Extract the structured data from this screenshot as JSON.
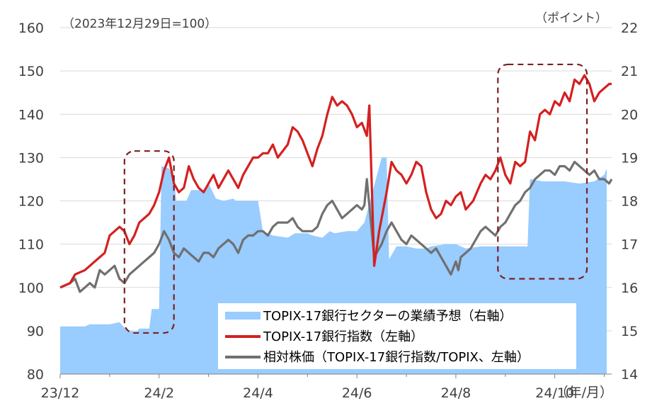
{
  "chart_data": {
    "type": "line",
    "base_note": "（2023年12月29日=100）",
    "right_unit": "（ポイント）",
    "x_unit": "（年/月）",
    "x_ticks": [
      "23/12",
      "24/2",
      "24/4",
      "24/6",
      "24/8",
      "24/10"
    ],
    "y_left": {
      "ticks": [
        80,
        90,
        100,
        110,
        120,
        130,
        140,
        150,
        160
      ],
      "range": [
        80,
        160
      ]
    },
    "y_right": {
      "ticks": [
        14,
        15,
        16,
        17,
        18,
        19,
        20,
        21,
        22
      ],
      "range": [
        14,
        22
      ]
    },
    "grid": true,
    "legend_position": "bottom-right",
    "colors": {
      "earnings": "#99ccff",
      "bank_index": "#d42020",
      "relative": "#707070",
      "highlight": "#7a2020"
    },
    "series": [
      {
        "name": "TOPIX-17銀行セクターの業績予想（右軸）",
        "axis": "right",
        "kind": "area",
        "points": [
          [
            0.0,
            15.1
          ],
          [
            0.4,
            15.1
          ],
          [
            0.5,
            15.1
          ],
          [
            0.6,
            15.15
          ],
          [
            1.0,
            15.15
          ],
          [
            1.2,
            15.2
          ],
          [
            1.35,
            15.0
          ],
          [
            1.55,
            14.98
          ],
          [
            1.6,
            15.05
          ],
          [
            1.8,
            15.05
          ],
          [
            1.85,
            15.5
          ],
          [
            2.0,
            15.5
          ],
          [
            2.05,
            18.8
          ],
          [
            2.2,
            18.75
          ],
          [
            2.3,
            18.5
          ],
          [
            2.35,
            18.0
          ],
          [
            2.55,
            18.0
          ],
          [
            2.65,
            18.25
          ],
          [
            2.9,
            18.25
          ],
          [
            3.0,
            18.4
          ],
          [
            3.15,
            18.05
          ],
          [
            3.3,
            18.0
          ],
          [
            3.5,
            18.05
          ],
          [
            3.55,
            18.0
          ],
          [
            4.0,
            18.0
          ],
          [
            4.1,
            17.3
          ],
          [
            4.3,
            17.2
          ],
          [
            4.6,
            17.15
          ],
          [
            4.75,
            17.25
          ],
          [
            5.0,
            17.25
          ],
          [
            5.1,
            17.2
          ],
          [
            5.3,
            17.15
          ],
          [
            5.45,
            17.3
          ],
          [
            5.55,
            17.25
          ],
          [
            5.8,
            17.3
          ],
          [
            6.0,
            17.3
          ],
          [
            6.15,
            17.5
          ],
          [
            6.5,
            19.0
          ],
          [
            6.6,
            19.0
          ],
          [
            6.65,
            16.65
          ],
          [
            6.8,
            16.95
          ],
          [
            7.0,
            16.95
          ],
          [
            7.2,
            16.9
          ],
          [
            7.4,
            16.9
          ],
          [
            7.5,
            16.95
          ],
          [
            7.8,
            17.0
          ],
          [
            8.0,
            17.0
          ],
          [
            8.2,
            16.9
          ],
          [
            8.5,
            16.95
          ],
          [
            8.75,
            16.95
          ],
          [
            9.0,
            16.95
          ],
          [
            9.3,
            16.95
          ],
          [
            9.45,
            16.95
          ],
          [
            9.5,
            18.5
          ],
          [
            9.75,
            18.45
          ],
          [
            10.0,
            18.45
          ],
          [
            10.2,
            18.45
          ],
          [
            10.5,
            18.4
          ],
          [
            10.8,
            18.45
          ],
          [
            11.0,
            18.6
          ],
          [
            11.05,
            18.75
          ]
        ]
      },
      {
        "name": "TOPIX-17銀行指数（左軸）",
        "axis": "left",
        "kind": "line",
        "points": [
          [
            0.0,
            100
          ],
          [
            0.2,
            101
          ],
          [
            0.3,
            103
          ],
          [
            0.5,
            104
          ],
          [
            0.7,
            106
          ],
          [
            0.8,
            107
          ],
          [
            0.9,
            108
          ],
          [
            1.0,
            112
          ],
          [
            1.1,
            113
          ],
          [
            1.2,
            114
          ],
          [
            1.3,
            113
          ],
          [
            1.4,
            110
          ],
          [
            1.5,
            112
          ],
          [
            1.6,
            115
          ],
          [
            1.7,
            116
          ],
          [
            1.8,
            117
          ],
          [
            1.9,
            119
          ],
          [
            2.0,
            122
          ],
          [
            2.1,
            127
          ],
          [
            2.2,
            130
          ],
          [
            2.3,
            124
          ],
          [
            2.4,
            122
          ],
          [
            2.5,
            123
          ],
          [
            2.6,
            128
          ],
          [
            2.7,
            125
          ],
          [
            2.8,
            123
          ],
          [
            2.9,
            122
          ],
          [
            3.0,
            124
          ],
          [
            3.1,
            126
          ],
          [
            3.2,
            123
          ],
          [
            3.3,
            125
          ],
          [
            3.4,
            127
          ],
          [
            3.5,
            125
          ],
          [
            3.6,
            123
          ],
          [
            3.7,
            126
          ],
          [
            3.8,
            128
          ],
          [
            3.9,
            130
          ],
          [
            4.0,
            130
          ],
          [
            4.1,
            131
          ],
          [
            4.2,
            131
          ],
          [
            4.3,
            133
          ],
          [
            4.4,
            130
          ],
          [
            4.6,
            133
          ],
          [
            4.7,
            137
          ],
          [
            4.8,
            136
          ],
          [
            4.9,
            134
          ],
          [
            5.0,
            131
          ],
          [
            5.1,
            128
          ],
          [
            5.2,
            132
          ],
          [
            5.3,
            135
          ],
          [
            5.4,
            140
          ],
          [
            5.5,
            144
          ],
          [
            5.6,
            142
          ],
          [
            5.7,
            143
          ],
          [
            5.8,
            142
          ],
          [
            5.9,
            140
          ],
          [
            6.0,
            137
          ],
          [
            6.1,
            138
          ],
          [
            6.2,
            135
          ],
          [
            6.25,
            142
          ],
          [
            6.35,
            105
          ],
          [
            6.45,
            113
          ],
          [
            6.6,
            122
          ],
          [
            6.7,
            129
          ],
          [
            6.8,
            127
          ],
          [
            6.9,
            126
          ],
          [
            7.0,
            124
          ],
          [
            7.1,
            126
          ],
          [
            7.2,
            129
          ],
          [
            7.3,
            128
          ],
          [
            7.4,
            122
          ],
          [
            7.5,
            118
          ],
          [
            7.6,
            116
          ],
          [
            7.7,
            117
          ],
          [
            7.8,
            120
          ],
          [
            7.9,
            119
          ],
          [
            8.0,
            121
          ],
          [
            8.1,
            122
          ],
          [
            8.2,
            118
          ],
          [
            8.35,
            120
          ],
          [
            8.5,
            124
          ],
          [
            8.6,
            126
          ],
          [
            8.7,
            125
          ],
          [
            8.8,
            127
          ],
          [
            8.9,
            130
          ],
          [
            9.0,
            126
          ],
          [
            9.1,
            124
          ],
          [
            9.2,
            129
          ],
          [
            9.3,
            128
          ],
          [
            9.4,
            129
          ],
          [
            9.5,
            136
          ],
          [
            9.6,
            134
          ],
          [
            9.7,
            140
          ],
          [
            9.8,
            141
          ],
          [
            9.9,
            140
          ],
          [
            10.0,
            143
          ],
          [
            10.1,
            142
          ],
          [
            10.2,
            145
          ],
          [
            10.3,
            143
          ],
          [
            10.4,
            148
          ],
          [
            10.5,
            147
          ],
          [
            10.6,
            149
          ],
          [
            10.7,
            147
          ],
          [
            10.8,
            143
          ],
          [
            10.9,
            145
          ],
          [
            11.0,
            146
          ],
          [
            11.1,
            147
          ],
          [
            11.15,
            147
          ]
        ]
      },
      {
        "name": "相対株価（TOPIX-17銀行指数/TOPIX、左軸）",
        "axis": "left",
        "kind": "line",
        "points": [
          [
            0.0,
            100
          ],
          [
            0.2,
            101
          ],
          [
            0.3,
            102
          ],
          [
            0.4,
            99
          ],
          [
            0.5,
            100
          ],
          [
            0.6,
            101
          ],
          [
            0.7,
            100
          ],
          [
            0.8,
            104
          ],
          [
            0.9,
            103
          ],
          [
            1.0,
            104
          ],
          [
            1.1,
            105
          ],
          [
            1.2,
            102
          ],
          [
            1.3,
            101
          ],
          [
            1.4,
            103
          ],
          [
            1.5,
            104
          ],
          [
            1.6,
            105
          ],
          [
            1.7,
            106
          ],
          [
            1.8,
            107
          ],
          [
            1.9,
            108
          ],
          [
            2.0,
            110
          ],
          [
            2.1,
            113
          ],
          [
            2.2,
            111
          ],
          [
            2.3,
            108
          ],
          [
            2.4,
            107
          ],
          [
            2.5,
            109
          ],
          [
            2.6,
            108
          ],
          [
            2.7,
            107
          ],
          [
            2.8,
            106
          ],
          [
            2.9,
            108
          ],
          [
            3.0,
            108
          ],
          [
            3.1,
            107
          ],
          [
            3.2,
            109
          ],
          [
            3.3,
            110
          ],
          [
            3.4,
            111
          ],
          [
            3.5,
            110
          ],
          [
            3.6,
            108
          ],
          [
            3.7,
            111
          ],
          [
            3.8,
            112
          ],
          [
            3.9,
            112
          ],
          [
            4.0,
            113
          ],
          [
            4.1,
            113
          ],
          [
            4.2,
            112
          ],
          [
            4.3,
            114
          ],
          [
            4.4,
            115
          ],
          [
            4.6,
            115
          ],
          [
            4.7,
            116
          ],
          [
            4.8,
            114
          ],
          [
            4.9,
            113
          ],
          [
            5.0,
            113
          ],
          [
            5.1,
            113
          ],
          [
            5.2,
            114
          ],
          [
            5.3,
            117
          ],
          [
            5.4,
            119
          ],
          [
            5.5,
            120
          ],
          [
            5.6,
            118
          ],
          [
            5.7,
            116
          ],
          [
            5.8,
            117
          ],
          [
            5.9,
            118
          ],
          [
            6.0,
            119
          ],
          [
            6.1,
            118
          ],
          [
            6.15,
            119
          ],
          [
            6.2,
            125
          ],
          [
            6.35,
            107
          ],
          [
            6.5,
            110
          ],
          [
            6.6,
            113
          ],
          [
            6.7,
            115
          ],
          [
            6.8,
            113
          ],
          [
            6.9,
            111
          ],
          [
            7.0,
            110
          ],
          [
            7.1,
            112
          ],
          [
            7.2,
            111
          ],
          [
            7.3,
            110
          ],
          [
            7.4,
            109
          ],
          [
            7.5,
            108
          ],
          [
            7.6,
            109
          ],
          [
            7.7,
            107
          ],
          [
            7.8,
            105
          ],
          [
            7.9,
            103
          ],
          [
            8.0,
            106
          ],
          [
            8.05,
            104
          ],
          [
            8.1,
            107
          ],
          [
            8.2,
            108
          ],
          [
            8.3,
            109
          ],
          [
            8.4,
            111
          ],
          [
            8.5,
            113
          ],
          [
            8.6,
            114
          ],
          [
            8.7,
            113
          ],
          [
            8.8,
            112
          ],
          [
            8.9,
            114
          ],
          [
            9.0,
            115
          ],
          [
            9.1,
            117
          ],
          [
            9.2,
            119
          ],
          [
            9.3,
            120
          ],
          [
            9.4,
            122
          ],
          [
            9.5,
            123
          ],
          [
            9.6,
            125
          ],
          [
            9.7,
            126
          ],
          [
            9.8,
            127
          ],
          [
            9.9,
            127
          ],
          [
            10.0,
            126
          ],
          [
            10.1,
            128
          ],
          [
            10.2,
            128
          ],
          [
            10.3,
            127
          ],
          [
            10.4,
            129
          ],
          [
            10.5,
            128
          ],
          [
            10.6,
            127
          ],
          [
            10.7,
            126
          ],
          [
            10.8,
            127
          ],
          [
            10.9,
            125
          ],
          [
            11.0,
            125
          ],
          [
            11.1,
            124
          ],
          [
            11.15,
            125
          ]
        ]
      }
    ]
  }
}
